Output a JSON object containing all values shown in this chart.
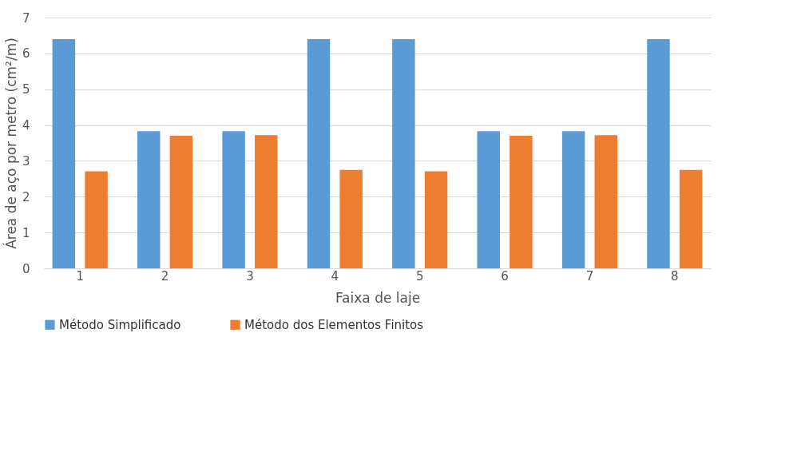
{
  "chart_data": {
    "type": "bar",
    "xlabel": "Faixa de laje",
    "ylabel": "Área de aço por metro (cm²/m)",
    "categories": [
      "1",
      "2",
      "3",
      "4",
      "5",
      "6",
      "7",
      "8"
    ],
    "series": [
      {
        "name": "Método Simplificado",
        "color": "#5b9bd5",
        "values": [
          6.4,
          3.83,
          3.83,
          6.4,
          6.4,
          3.83,
          3.83,
          6.4
        ]
      },
      {
        "name": "Método dos Elementos Finitos",
        "color": "#ed7d31",
        "values": [
          2.71,
          3.7,
          3.72,
          2.75,
          2.71,
          3.7,
          3.72,
          2.75
        ]
      }
    ],
    "ylim": [
      0,
      7
    ],
    "yticks": [
      0,
      1,
      2,
      3,
      4,
      5,
      6,
      7
    ],
    "grid": "y",
    "legend": "bottom"
  }
}
